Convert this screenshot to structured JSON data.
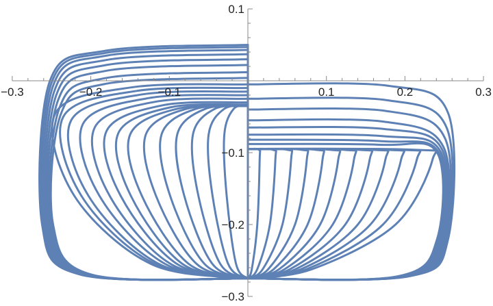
{
  "chart_data": {
    "type": "line",
    "title": "",
    "xlabel": "",
    "ylabel": "",
    "xlim": [
      -0.3,
      0.3
    ],
    "ylim": [
      -0.3,
      0.1
    ],
    "grid": false,
    "color": "#5E81B5",
    "x_ticks": [
      {
        "value": -0.3,
        "label": "−0.3"
      },
      {
        "value": -0.2,
        "label": "−0.2"
      },
      {
        "value": -0.1,
        "label": "−0.1"
      },
      {
        "value": 0.1,
        "label": "0.1"
      },
      {
        "value": 0.2,
        "label": "0.2"
      },
      {
        "value": 0.3,
        "label": "0.3"
      }
    ],
    "y_ticks": [
      {
        "value": 0.1,
        "label": "0.1"
      },
      {
        "value": -0.1,
        "label": "−0.1"
      },
      {
        "value": -0.2,
        "label": "−0.2"
      },
      {
        "value": -0.3,
        "label": "−0.3"
      }
    ],
    "series": [
      [
        [
          0,
          0.05
        ],
        [
          -0.18,
          0.042
        ],
        [
          -0.252,
          0
        ],
        [
          -0.262,
          -0.2
        ],
        [
          -0.212,
          -0.27
        ],
        [
          0,
          -0.275
        ]
      ],
      [
        [
          0,
          0.047
        ],
        [
          -0.18,
          0.039
        ],
        [
          -0.25,
          -0.003
        ],
        [
          -0.26,
          -0.2
        ],
        [
          -0.21,
          -0.27
        ],
        [
          0,
          -0.275
        ]
      ],
      [
        [
          0,
          0.043
        ],
        [
          -0.18,
          0.035
        ],
        [
          -0.248,
          -0.007
        ],
        [
          -0.258,
          -0.2
        ],
        [
          -0.208,
          -0.27
        ],
        [
          0,
          -0.275
        ]
      ],
      [
        [
          0,
          0.037
        ],
        [
          -0.18,
          0.029
        ],
        [
          -0.246,
          -0.013
        ],
        [
          -0.256,
          -0.2
        ],
        [
          -0.206,
          -0.27
        ],
        [
          0,
          -0.275
        ]
      ],
      [
        [
          0,
          0.03
        ],
        [
          -0.18,
          0.022
        ],
        [
          -0.244,
          -0.02
        ],
        [
          -0.254,
          -0.2
        ],
        [
          -0.204,
          -0.27
        ],
        [
          0,
          -0.275
        ]
      ],
      [
        [
          0,
          0.022
        ],
        [
          -0.18,
          0.014
        ],
        [
          -0.242,
          -0.028
        ],
        [
          -0.252,
          -0.2
        ],
        [
          -0.202,
          -0.27
        ],
        [
          0,
          -0.275
        ]
      ],
      [
        [
          0,
          0.012
        ],
        [
          -0.18,
          0.004
        ],
        [
          -0.24,
          -0.038
        ],
        [
          -0.25,
          -0.2
        ],
        [
          -0.2,
          -0.27
        ],
        [
          0,
          -0.275
        ]
      ],
      [
        [
          0,
          0.004
        ],
        [
          -0.18,
          -0.004
        ],
        [
          -0.238,
          -0.046
        ],
        [
          -0.248,
          -0.2
        ],
        [
          -0.198,
          -0.27
        ],
        [
          0,
          -0.275
        ]
      ],
      [
        [
          0,
          -0.005
        ],
        [
          -0.147,
          -0.009
        ],
        [
          -0.245,
          -0.045
        ],
        [
          -0.221,
          -0.16
        ],
        [
          -0.123,
          -0.255
        ],
        [
          0,
          -0.275
        ]
      ],
      [
        [
          0,
          -0.01
        ],
        [
          -0.141,
          -0.014
        ],
        [
          -0.235,
          -0.05
        ],
        [
          -0.212,
          -0.16
        ],
        [
          -0.118,
          -0.255
        ],
        [
          0,
          -0.275
        ]
      ],
      [
        [
          0,
          -0.015
        ],
        [
          -0.135,
          -0.019
        ],
        [
          -0.225,
          -0.055
        ],
        [
          -0.203,
          -0.16
        ],
        [
          -0.113,
          -0.255
        ],
        [
          0,
          -0.275
        ]
      ],
      [
        [
          0,
          -0.02
        ],
        [
          -0.126,
          -0.024
        ],
        [
          -0.21,
          -0.06
        ],
        [
          -0.189,
          -0.16
        ],
        [
          -0.105,
          -0.255
        ],
        [
          0,
          -0.275
        ]
      ],
      [
        [
          0,
          -0.025
        ],
        [
          -0.117,
          -0.029
        ],
        [
          -0.195,
          -0.065
        ],
        [
          -0.176,
          -0.16
        ],
        [
          -0.098,
          -0.255
        ],
        [
          0,
          -0.275
        ]
      ],
      [
        [
          0,
          -0.03
        ],
        [
          -0.108,
          -0.034
        ],
        [
          -0.18,
          -0.07
        ],
        [
          -0.162,
          -0.16
        ],
        [
          -0.09,
          -0.255
        ],
        [
          0,
          -0.275
        ]
      ],
      [
        [
          0,
          -0.033
        ],
        [
          -0.099,
          -0.037
        ],
        [
          -0.165,
          -0.073
        ],
        [
          -0.149,
          -0.16
        ],
        [
          -0.083,
          -0.255
        ],
        [
          0,
          -0.275
        ]
      ],
      [
        [
          0,
          -0.035
        ],
        [
          -0.09,
          -0.039
        ],
        [
          -0.15,
          -0.075
        ],
        [
          -0.135,
          -0.16
        ],
        [
          -0.075,
          -0.255
        ],
        [
          0,
          -0.275
        ]
      ],
      [
        [
          0,
          -0.035
        ],
        [
          -0.078,
          -0.039
        ],
        [
          -0.13,
          -0.075
        ],
        [
          -0.117,
          -0.16
        ],
        [
          -0.065,
          -0.255
        ],
        [
          0,
          -0.275
        ]
      ],
      [
        [
          0,
          -0.035
        ],
        [
          -0.066,
          -0.039
        ],
        [
          -0.11,
          -0.075
        ],
        [
          -0.099,
          -0.16
        ],
        [
          -0.055,
          -0.255
        ],
        [
          0,
          -0.275
        ]
      ],
      [
        [
          0,
          -0.035
        ],
        [
          -0.054,
          -0.039
        ],
        [
          -0.09,
          -0.075
        ],
        [
          -0.081,
          -0.16
        ],
        [
          -0.045,
          -0.255
        ],
        [
          0,
          -0.275
        ]
      ],
      [
        [
          0,
          -0.035
        ],
        [
          -0.042,
          -0.039
        ],
        [
          -0.07,
          -0.075
        ],
        [
          -0.063,
          -0.16
        ],
        [
          -0.035,
          -0.255
        ],
        [
          0,
          -0.275
        ]
      ],
      [
        [
          0,
          -0.035
        ],
        [
          -0.03,
          -0.039
        ],
        [
          -0.05,
          -0.075
        ],
        [
          -0.045,
          -0.16
        ],
        [
          -0.025,
          -0.255
        ],
        [
          0,
          -0.275
        ]
      ],
      [
        [
          0,
          -0.035
        ],
        [
          -0.018,
          -0.039
        ],
        [
          -0.03,
          -0.075
        ],
        [
          -0.027,
          -0.16
        ],
        [
          -0.015,
          -0.255
        ],
        [
          0,
          -0.275
        ]
      ],
      [
        [
          0,
          -0.005
        ],
        [
          0.179,
          -0.007
        ],
        [
          0.255,
          -0.045
        ],
        [
          0.255,
          -0.22
        ],
        [
          0.205,
          -0.272
        ],
        [
          0,
          -0.275
        ]
      ],
      [
        [
          0,
          -0.025
        ],
        [
          0.177,
          -0.027
        ],
        [
          0.253,
          -0.065
        ],
        [
          0.253,
          -0.22
        ],
        [
          0.203,
          -0.272
        ],
        [
          0,
          -0.275
        ]
      ],
      [
        [
          0,
          -0.04
        ],
        [
          0.176,
          -0.042
        ],
        [
          0.251,
          -0.08
        ],
        [
          0.251,
          -0.22
        ],
        [
          0.201,
          -0.272
        ],
        [
          0,
          -0.275
        ]
      ],
      [
        [
          0,
          -0.055
        ],
        [
          0.174,
          -0.057
        ],
        [
          0.249,
          -0.092
        ],
        [
          0.249,
          -0.22
        ],
        [
          0.199,
          -0.272
        ],
        [
          0,
          -0.275
        ]
      ],
      [
        [
          0,
          -0.065
        ],
        [
          0.173,
          -0.067
        ],
        [
          0.247,
          -0.095
        ],
        [
          0.247,
          -0.22
        ],
        [
          0.197,
          -0.272
        ],
        [
          0,
          -0.275
        ]
      ],
      [
        [
          0,
          -0.075
        ],
        [
          0.172,
          -0.077
        ],
        [
          0.245,
          -0.098
        ],
        [
          0.245,
          -0.22
        ],
        [
          0.195,
          -0.272
        ],
        [
          0,
          -0.275
        ]
      ],
      [
        [
          0,
          -0.082
        ],
        [
          0.17,
          -0.084
        ],
        [
          0.243,
          -0.1
        ],
        [
          0.243,
          -0.22
        ],
        [
          0.193,
          -0.272
        ],
        [
          0,
          -0.275
        ]
      ],
      [
        [
          0,
          -0.088
        ],
        [
          0.169,
          -0.089
        ],
        [
          0.241,
          -0.1
        ],
        [
          0.241,
          -0.22
        ],
        [
          0.191,
          -0.272
        ],
        [
          0,
          -0.275
        ]
      ],
      [
        [
          0,
          -0.095
        ],
        [
          0.212,
          -0.096
        ],
        [
          0.235,
          -0.11
        ],
        [
          0.188,
          -0.2
        ],
        [
          0.082,
          -0.262
        ],
        [
          0,
          -0.275
        ]
      ],
      [
        [
          0,
          -0.095
        ],
        [
          0.194,
          -0.096
        ],
        [
          0.215,
          -0.11
        ],
        [
          0.172,
          -0.2
        ],
        [
          0.075,
          -0.262
        ],
        [
          0,
          -0.275
        ]
      ],
      [
        [
          0,
          -0.095
        ],
        [
          0.176,
          -0.096
        ],
        [
          0.195,
          -0.11
        ],
        [
          0.156,
          -0.2
        ],
        [
          0.068,
          -0.262
        ],
        [
          0,
          -0.275
        ]
      ],
      [
        [
          0,
          -0.095
        ],
        [
          0.158,
          -0.096
        ],
        [
          0.175,
          -0.11
        ],
        [
          0.14,
          -0.2
        ],
        [
          0.061,
          -0.262
        ],
        [
          0,
          -0.275
        ]
      ],
      [
        [
          0,
          -0.095
        ],
        [
          0.14,
          -0.096
        ],
        [
          0.155,
          -0.11
        ],
        [
          0.124,
          -0.2
        ],
        [
          0.054,
          -0.262
        ],
        [
          0,
          -0.275
        ]
      ],
      [
        [
          0,
          -0.095
        ],
        [
          0.122,
          -0.096
        ],
        [
          0.135,
          -0.11
        ],
        [
          0.108,
          -0.2
        ],
        [
          0.047,
          -0.262
        ],
        [
          0,
          -0.275
        ]
      ],
      [
        [
          0,
          -0.095
        ],
        [
          0.104,
          -0.096
        ],
        [
          0.115,
          -0.11
        ],
        [
          0.092,
          -0.2
        ],
        [
          0.04,
          -0.262
        ],
        [
          0,
          -0.275
        ]
      ],
      [
        [
          0,
          -0.095
        ],
        [
          0.086,
          -0.096
        ],
        [
          0.095,
          -0.11
        ],
        [
          0.076,
          -0.2
        ],
        [
          0.033,
          -0.262
        ],
        [
          0,
          -0.275
        ]
      ],
      [
        [
          0,
          -0.095
        ],
        [
          0.068,
          -0.096
        ],
        [
          0.075,
          -0.11
        ],
        [
          0.06,
          -0.2
        ],
        [
          0.026,
          -0.262
        ],
        [
          0,
          -0.275
        ]
      ],
      [
        [
          0,
          -0.095
        ],
        [
          0.05,
          -0.096
        ],
        [
          0.055,
          -0.11
        ],
        [
          0.044,
          -0.2
        ],
        [
          0.019,
          -0.262
        ],
        [
          0,
          -0.275
        ]
      ],
      [
        [
          0,
          -0.095
        ],
        [
          0.032,
          -0.096
        ],
        [
          0.035,
          -0.11
        ],
        [
          0.028,
          -0.2
        ],
        [
          0.012,
          -0.262
        ],
        [
          0,
          -0.275
        ]
      ],
      [
        [
          0,
          -0.095
        ],
        [
          0.014,
          -0.096
        ],
        [
          0.015,
          -0.11
        ],
        [
          0.012,
          -0.2
        ],
        [
          0.005,
          -0.262
        ],
        [
          0,
          -0.275
        ]
      ],
      [
        [
          0,
          0.05
        ],
        [
          0,
          -0.275
        ]
      ]
    ]
  }
}
